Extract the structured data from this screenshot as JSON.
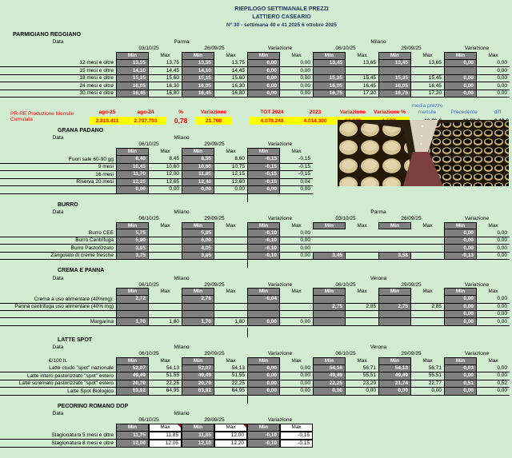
{
  "title": {
    "line1": "RIEPILOGO SETTIMANALE PREZZI",
    "line2": "LATTIERO CASEARIO",
    "line3": "N° 30 - settimana 40 e 41 2025  6 ottobre  2025"
  },
  "labels": {
    "data": "Data",
    "min": "Min",
    "max": "Max",
    "variazione": "Variazione"
  },
  "production": {
    "label": "PR-RE Produzione Mensile  Cumulata",
    "items": [
      {
        "header": "ago-25",
        "value": "2.819.411",
        "style": "yellow"
      },
      {
        "header": "ago-24",
        "value": "2.797.703",
        "style": "yellow"
      },
      {
        "header": "%",
        "value": "0,78",
        "style": "plain"
      },
      {
        "header": "Variazione",
        "value": "21.708",
        "style": "yellow"
      },
      {
        "header": "TOT 2024",
        "value": "4.079.248",
        "style": "yellow"
      },
      {
        "header": "2023",
        "value": "4.014.300",
        "style": "yellow"
      },
      {
        "header": "Variazione",
        "value": "64.948",
        "style": "yellow"
      },
      {
        "header": "Variazione %",
        "value": "1,59%",
        "style": "yellow"
      },
      {
        "header": "media prezzo mensile",
        "value": "13,99 €",
        "style": "blue"
      },
      {
        "header": "Precedente",
        "value": "13,80 €",
        "style": "blue"
      },
      {
        "header": "diff",
        "value": "0,19 €",
        "style": "blue"
      }
    ]
  },
  "colors": {
    "background": "#d2ecd2",
    "min_cell": "#7f7f7f",
    "highlight": "#ffff00",
    "alert": "#ff0000",
    "title_navy": "#1f3864",
    "blue_header": "#4472c4"
  },
  "sections": [
    {
      "title": "PARMIGIANO REGGIANO",
      "unit": "",
      "groups": [
        {
          "city": "Parma",
          "dates": [
            "03/10/25",
            "26/09/25"
          ]
        },
        {
          "city": "Milano",
          "dates": [
            "06/10/25",
            "29/09/25"
          ]
        }
      ],
      "rows": [
        {
          "label": "12 mesi e oltre",
          "cells": [
            "13,55",
            "13,75",
            "13,55",
            "13,75",
            "0,00",
            "0,00",
            "13,45",
            "13,65",
            "13,45",
            "13,65",
            "0,00",
            "0,00"
          ]
        },
        {
          "label": "15 mesi e oltre",
          "cells": [
            "14,10",
            "14,45",
            "14,10",
            "14,45",
            "0,00",
            "0,00",
            "",
            "",
            "",
            "",
            "",
            "0,00"
          ]
        },
        {
          "label": "18 mesi e oltre",
          "cells": [
            "15,15",
            "15,60",
            "15,15",
            "15,60",
            "0,00",
            "0,00",
            "15,35",
            "15,45",
            "15,35",
            "15,45",
            "0,00",
            "0,00"
          ]
        },
        {
          "label": "24 mesi e oltre",
          "cells": [
            "16,05",
            "16,30",
            "16,05",
            "16,30",
            "0,00",
            "0,00",
            "16,05",
            "16,45",
            "16,05",
            "16,45",
            "0,00",
            "0,00"
          ]
        },
        {
          "label": "30 mesi e oltre",
          "cells": [
            "16,45",
            "16,80",
            "16,45",
            "16,80",
            "0,00",
            "0,00",
            "16,75",
            "17,20",
            "16,75",
            "17,20",
            "0,00",
            "0,00"
          ]
        }
      ]
    },
    {
      "title": "GRANA PADANO",
      "unit": "",
      "groups": [
        {
          "city": "Milano",
          "dates": [
            "06/10/25",
            "29/09/25"
          ]
        }
      ],
      "rows": [
        {
          "label": "Fuori sale 60-90 gg",
          "cells": [
            "8,40",
            "8,45",
            "8,55",
            "8,60",
            "-0,15",
            "-0,15"
          ]
        },
        {
          "label": "9 mesi",
          "cells": [
            "10,45",
            "10,60",
            "10,60",
            "10,75",
            "-0,15",
            "-0,15"
          ]
        },
        {
          "label": "16 mesi",
          "cells": [
            "11,70",
            "12,00",
            "11,85",
            "12,15",
            "-0,15",
            "-0,15"
          ]
        },
        {
          "label": "Riserva 20 mesi",
          "cells": [
            "12,25",
            "12,65",
            "12,40",
            "12,60",
            "-0,15",
            "0,04"
          ]
        },
        {
          "label": "",
          "cells": [
            "0,00",
            "0,00",
            "0,00",
            "0,00",
            "0,00",
            "0,00"
          ]
        }
      ]
    },
    {
      "title": "BURRO",
      "unit": "",
      "groups": [
        {
          "city": "Milano",
          "dates": [
            "06/10/25",
            "29/09/25"
          ]
        },
        {
          "city": "Parma",
          "dates": [
            "03/10/25",
            "26/09/25"
          ]
        }
      ],
      "rows": [
        {
          "label": "Burro CEE",
          "cells": [
            "5,75",
            null,
            "5,85",
            null,
            "-0,10",
            "0,00",
            null,
            null,
            null,
            null,
            "0,00",
            "0,00"
          ]
        },
        {
          "label": "Burro Centrifuga",
          "cells": [
            "5,90",
            null,
            "6,00",
            null,
            "-0,10",
            "0,00",
            null,
            null,
            null,
            null,
            "0,00",
            "0,00"
          ]
        },
        {
          "label": "Burro Pastorizzato",
          "cells": [
            "3,95",
            null,
            "4,05",
            null,
            "-0,10",
            "0,00",
            null,
            null,
            null,
            null,
            "0,00",
            "0,00"
          ]
        },
        {
          "label": "Zangolato di creme fresche",
          "cells": [
            "3,75",
            null,
            "3,85",
            null,
            "-0,10",
            "0,00",
            "3,45",
            null,
            "3,58",
            null,
            "-0,13",
            "0,00"
          ]
        }
      ]
    },
    {
      "title": "CREMA E PANNA",
      "unit": "",
      "groups": [
        {
          "city": "Milano",
          "dates": [
            "06/10/25",
            "29/09/25"
          ]
        },
        {
          "city": "Verona",
          "dates": [
            "06/10/25",
            "29/09/25"
          ]
        }
      ],
      "rows": [
        {
          "label": "Crema a uso alimentare (40%mg):",
          "cells": [
            "2,72",
            "",
            "2,76",
            "",
            "-0,04",
            "",
            "",
            "",
            "",
            "",
            "0,00",
            "0,00"
          ]
        },
        {
          "label": "Panna centrifuga uso alimentare (40% mg)",
          "cells": [
            "",
            "",
            "",
            "",
            "",
            "",
            "2,75",
            "2,85",
            "2,75",
            "2,85",
            "0,00",
            "0,00"
          ]
        },
        {
          "label": "",
          "thin": true,
          "cells": [
            "",
            "",
            "",
            "",
            "",
            "",
            "",
            "",
            "",
            "",
            "0,00",
            "0,00"
          ]
        },
        {
          "label": "Margarina",
          "cells": [
            "1,70",
            "1,80",
            "1,70",
            "1,80",
            "0,00",
            "0,00",
            "",
            "",
            "",
            "",
            "0,00",
            "0,00"
          ]
        }
      ]
    },
    {
      "title": "LATTE SPOT",
      "unit": "€/100 lt.",
      "groups": [
        {
          "city": "Milano",
          "dates": [
            "06/10/25",
            "29/09/25"
          ]
        },
        {
          "city": "Verona",
          "dates": [
            "06/10/25",
            "29/09/25"
          ]
        }
      ],
      "rows": [
        {
          "label": "Latte crudo \"spot\" nazionale",
          "cells": [
            "52,07",
            "54,13",
            "52,07",
            "54,13",
            "0,00",
            "0,00",
            "54,16",
            "56,71",
            "54,13",
            "56,71",
            "0,03",
            "0,00"
          ]
        },
        {
          "label": "Latte intero pastorizzato \"spot\" estero",
          "cells": [
            "49,49",
            "51,55",
            "49,49",
            "51,55",
            "0,00",
            "0,00",
            "49,49",
            "55,51",
            "49,49",
            "55,51",
            "0,00",
            "0,00"
          ]
        },
        {
          "label": "Latte scremato pastorizzato \"spot\" estero",
          "cells": [
            "20,70",
            "22,25",
            "20,70",
            "22,25",
            "0,00",
            "0,00",
            "22,25",
            "23,29",
            "21,74",
            "22,77",
            "0,51",
            "0,52"
          ]
        },
        {
          "label": "Latte Spot Biologico",
          "cells": [
            "63,92",
            "64,95",
            "63,92",
            "64,95",
            "0,00",
            "0,00",
            "0,00",
            "0,00",
            "0,00",
            "0,00",
            "0,00",
            "0,00"
          ]
        }
      ]
    },
    {
      "title": "PECORINO ROMANO DOP",
      "unit": "",
      "max_boxed": true,
      "corner_marks": true,
      "groups": [
        {
          "city": "Milano",
          "dates": [
            "06/10/25",
            "29/09/25"
          ]
        }
      ],
      "rows": [
        {
          "label": "Stagionatura 5 mesi e oltre",
          "cells": [
            "11,75",
            "11,85",
            "11,85",
            "12,00",
            "-0,10",
            "-0,15"
          ]
        },
        {
          "label": "Stagionatura 8 mesi e oltre",
          "cells": [
            "12,00",
            "12,05",
            "12,10",
            "12,20",
            "-0,10",
            "-0,15"
          ]
        }
      ]
    }
  ]
}
